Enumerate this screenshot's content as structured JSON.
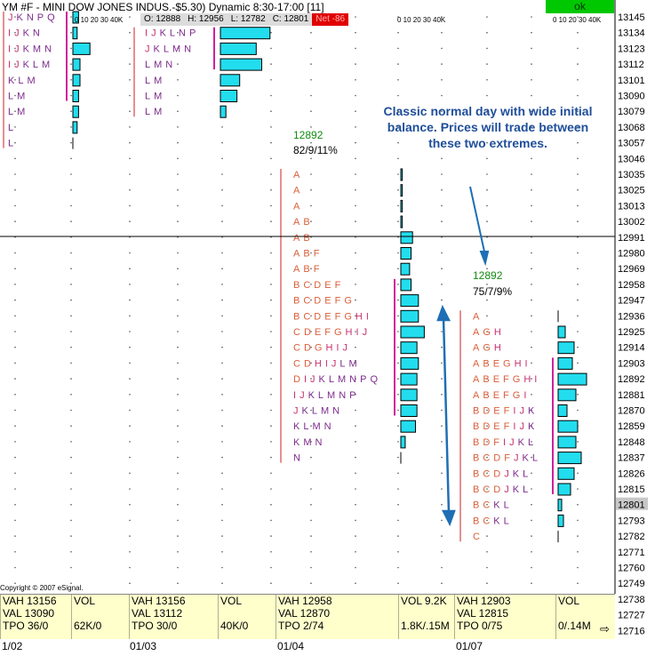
{
  "title": "YM #F - MINI DOW JONES INDUS.-$5.30) Dynamic 8:30-17:00 [11]",
  "ohlc": {
    "open": "O: 12888",
    "high": "H: 12956",
    "low": "L: 12782",
    "close": "C: 12801",
    "net": "Net -86"
  },
  "ok_label": "ok",
  "vol_scale_label": "0  10  20  30  40K",
  "price_axis": [
    "13145",
    "13134",
    "13123",
    "13112",
    "13101",
    "13090",
    "13079",
    "13068",
    "13057",
    "13046",
    "13035",
    "13025",
    "13013",
    "13002",
    "12991",
    "12980",
    "12969",
    "12958",
    "12947",
    "12936",
    "12925",
    "12914",
    "12903",
    "12892",
    "12881",
    "12870",
    "12859",
    "12848",
    "12837",
    "12826",
    "12815",
    "12801",
    "12793",
    "12782",
    "12771",
    "12760",
    "12749",
    "12738",
    "12727",
    "12716"
  ],
  "current_price": "12801",
  "annotation": "Classic normal day with wide initial balance. Prices will trade between these two extremes.",
  "day2_info": {
    "price": "12892",
    "stats": "82/9/11%"
  },
  "day3_info": {
    "price": "12892",
    "stats": "75/7/9%"
  },
  "copyright": "Copyright © 2007 eSignal.",
  "footer": {
    "cells": [
      {
        "lines": [
          "VAH 13156",
          "VAL 13090",
          "TPO 36/0"
        ]
      },
      {
        "lines": [
          "VOL",
          "",
          "62K/0"
        ]
      },
      {
        "lines": [
          "VAH 13156",
          "VAL 13112",
          "TPO 30/0"
        ]
      },
      {
        "lines": [
          "VOL",
          "",
          "40K/0"
        ]
      },
      {
        "lines": [
          "VAH 12958",
          "VAL 12870",
          "TPO 2/74"
        ]
      },
      {
        "lines": [
          "VOL 9.2K",
          "",
          "1.8K/.15M"
        ]
      },
      {
        "lines": [
          "VAH 12903",
          "VAL 12815",
          "TPO 0/75"
        ]
      },
      {
        "lines": [
          "VOL",
          "",
          "0/.14M"
        ]
      }
    ]
  },
  "dates": [
    "1/02",
    "01/03",
    "01/04",
    "01/07"
  ],
  "profiles": {
    "day0": [
      {
        "letters": "J K N P Q",
        "vol": 4
      },
      {
        "letters": "I J K N",
        "vol": 3
      },
      {
        "letters": "I J K M N",
        "vol": 12
      },
      {
        "letters": "I J K L M",
        "vol": 5
      },
      {
        "letters": "K L M",
        "vol": 5
      },
      {
        "letters": "L M",
        "vol": 4
      },
      {
        "letters": "L M",
        "vol": 4
      },
      {
        "letters": "L",
        "vol": 3
      },
      {
        "letters": "L",
        "vol": 0
      }
    ],
    "day1": [
      {
        "letters": "I J K L N P",
        "vol": 36
      },
      {
        "letters": "J K L M N",
        "vol": 26
      },
      {
        "letters": "L M N",
        "vol": 30
      },
      {
        "letters": "L M",
        "vol": 14
      },
      {
        "letters": "L M",
        "vol": 12
      },
      {
        "letters": "L M",
        "vol": 4
      }
    ],
    "day2": [
      {
        "letters": "A",
        "vol": 1
      },
      {
        "letters": "A",
        "vol": 1
      },
      {
        "letters": "A",
        "vol": 1
      },
      {
        "letters": "A B",
        "vol": 1
      },
      {
        "letters": "A B",
        "vol": 8
      },
      {
        "letters": "A B F",
        "vol": 7
      },
      {
        "letters": "A B F",
        "vol": 6
      },
      {
        "letters": "B C D E F",
        "vol": 7
      },
      {
        "letters": "B C D E F G",
        "vol": 12
      },
      {
        "letters": "B C D E F G H I",
        "vol": 12
      },
      {
        "letters": "C D E F G H I J",
        "vol": 16
      },
      {
        "letters": "C D G H I J",
        "vol": 11
      },
      {
        "letters": "C D H I J L M",
        "vol": 12
      },
      {
        "letters": "D I J K L M N P Q",
        "vol": 11
      },
      {
        "letters": "I J K L M N P",
        "vol": 11
      },
      {
        "letters": "J K L M N",
        "vol": 11
      },
      {
        "letters": "K L M N",
        "vol": 10
      },
      {
        "letters": "K M N",
        "vol": 3
      },
      {
        "letters": "N",
        "vol": 0
      }
    ],
    "day3": [
      {
        "letters": "A",
        "vol": 0
      },
      {
        "letters": "A G H",
        "vol": 4
      },
      {
        "letters": "A G H",
        "vol": 9
      },
      {
        "letters": "A B E G H I",
        "vol": 8
      },
      {
        "letters": "A B E F G H I",
        "vol": 16
      },
      {
        "letters": "A B E F G I",
        "vol": 10
      },
      {
        "letters": "B D E F I J K",
        "vol": 5
      },
      {
        "letters": "B D E F I J K",
        "vol": 11
      },
      {
        "letters": "B D F I J K L",
        "vol": 10
      },
      {
        "letters": "B C D F J K L",
        "vol": 13
      },
      {
        "letters": "B C D J K L",
        "vol": 9
      },
      {
        "letters": "B C D J K L",
        "vol": 7
      },
      {
        "letters": "B C K L",
        "vol": 2
      },
      {
        "letters": "B C K L",
        "vol": 3
      },
      {
        "letters": "C",
        "vol": 0
      }
    ]
  }
}
